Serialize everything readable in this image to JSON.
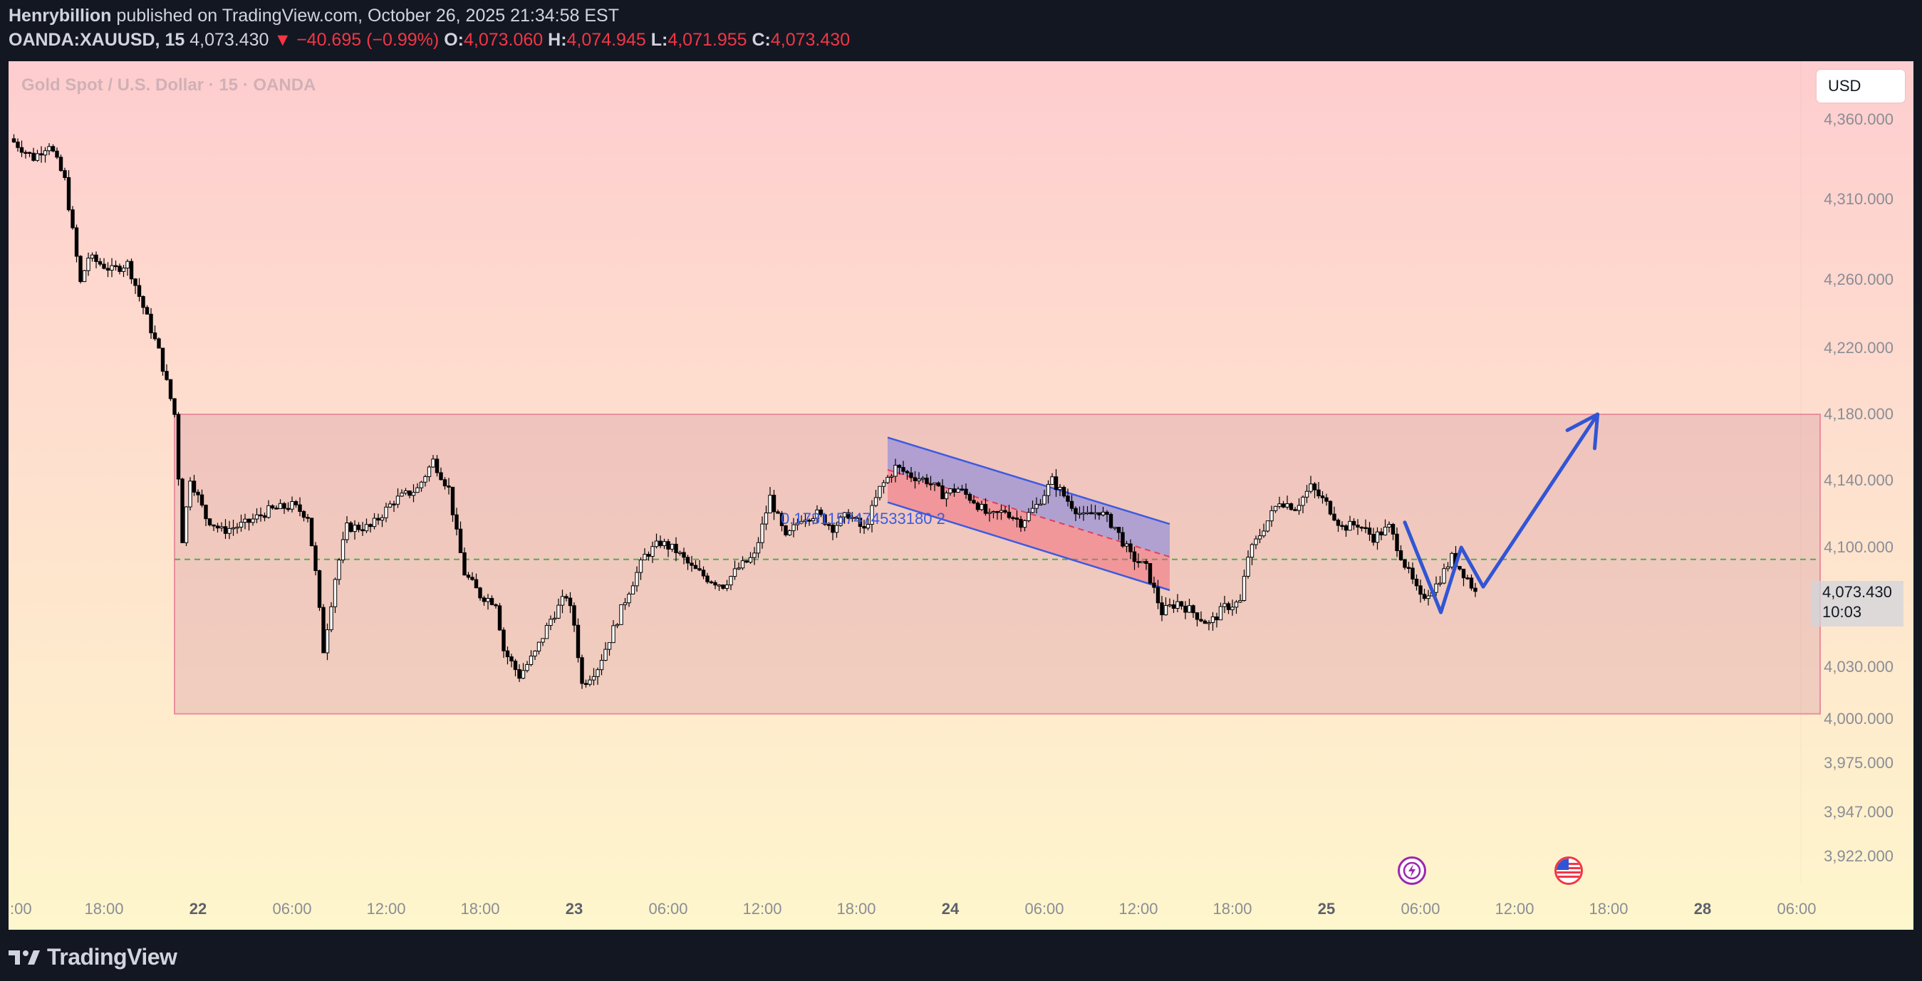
{
  "header": {
    "author": "Henrybillion",
    "published_text": "published on TradingView.com, October 26, 2025 21:34:58 EST",
    "symbol": "OANDA:XAUUSD, 15",
    "last_price": "4,073.430",
    "change": "▼ −40.695 (−0.99%)",
    "open_label": "O:",
    "open": "4,073.060",
    "high_label": "H:",
    "high": "4,074.945",
    "low_label": "L:",
    "low": "4,071.955",
    "close_label": "C:",
    "close": "4,073.430"
  },
  "chart": {
    "symbol_title": "Gold Spot / U.S. Dollar · 15 · OANDA",
    "currency": "USD",
    "price_tag_value": "4,073.430",
    "price_tag_timer": "10:03",
    "channel_label": "0.1731157474533180 2"
  },
  "footer": {
    "brand": "TradingView"
  },
  "colors": {
    "background_top": "#fecdcf",
    "background_bottom": "#fef6cc",
    "up_candle": "#ffffff",
    "down_candle": "#000000",
    "range_box": "#e2a8b3",
    "channel_blue": "#3d5be0",
    "arrow": "#3155d4",
    "midline": "#4caf50",
    "axis_text": "#8a8d96"
  },
  "icons": [
    "flash-icon",
    "us-flag-icon",
    "tradingview-logo-icon"
  ],
  "chart_data": {
    "type": "candlestick",
    "timeframe": "15",
    "y_ticks": [
      4360,
      4310,
      4260,
      4220,
      4180,
      4140,
      4100,
      4030,
      4000,
      3975,
      3947,
      3922
    ],
    "y_tick_labels": [
      "4,360.000",
      "4,310.000",
      "4,260.000",
      "4,220.000",
      "4,180.000",
      "4,140.000",
      "4,100.000",
      "4,030.000",
      "4,000.000",
      "3,975.000",
      "3,947.000",
      "3,922.000"
    ],
    "x_ticks": [
      {
        "label": ":00",
        "t": 12
      },
      {
        "label": "18:00",
        "t": 18
      },
      {
        "label": "22",
        "t": 24
      },
      {
        "label": "06:00",
        "t": 30
      },
      {
        "label": "12:00",
        "t": 36
      },
      {
        "label": "18:00",
        "t": 42
      },
      {
        "label": "23",
        "t": 48
      },
      {
        "label": "06:00",
        "t": 54
      },
      {
        "label": "12:00",
        "t": 60
      },
      {
        "label": "18:00",
        "t": 66
      },
      {
        "label": "24",
        "t": 72
      },
      {
        "label": "06:00",
        "t": 78
      },
      {
        "label": "12:00",
        "t": 84
      },
      {
        "label": "18:00",
        "t": 90
      },
      {
        "label": "25",
        "t": 96
      },
      {
        "label": "06:00",
        "t": 102
      },
      {
        "label": "12:00",
        "t": 108
      },
      {
        "label": "18:00",
        "t": 114
      },
      {
        "label": "28",
        "t": 120
      },
      {
        "label": "06:00",
        "t": 126
      }
    ],
    "price_path": [
      {
        "t": 12,
        "p": 4348
      },
      {
        "t": 13.5,
        "p": 4336
      },
      {
        "t": 14.5,
        "p": 4345
      },
      {
        "t": 15.5,
        "p": 4322
      },
      {
        "t": 16,
        "p": 4290
      },
      {
        "t": 16.5,
        "p": 4258
      },
      {
        "t": 17,
        "p": 4274
      },
      {
        "t": 18.5,
        "p": 4266
      },
      {
        "t": 19.5,
        "p": 4270
      },
      {
        "t": 20.5,
        "p": 4244
      },
      {
        "t": 21.5,
        "p": 4218
      },
      {
        "t": 22.5,
        "p": 4180
      },
      {
        "t": 23,
        "p": 4105
      },
      {
        "t": 23.5,
        "p": 4142
      },
      {
        "t": 24.5,
        "p": 4118
      },
      {
        "t": 25.5,
        "p": 4110
      },
      {
        "t": 27,
        "p": 4114
      },
      {
        "t": 28.5,
        "p": 4122
      },
      {
        "t": 30,
        "p": 4125
      },
      {
        "t": 31,
        "p": 4119
      },
      {
        "t": 31.5,
        "p": 4085
      },
      {
        "t": 32,
        "p": 4040
      },
      {
        "t": 32.8,
        "p": 4085
      },
      {
        "t": 33.5,
        "p": 4112
      },
      {
        "t": 35,
        "p": 4112
      },
      {
        "t": 36.5,
        "p": 4128
      },
      {
        "t": 38,
        "p": 4135
      },
      {
        "t": 39,
        "p": 4152
      },
      {
        "t": 40,
        "p": 4135
      },
      {
        "t": 40.5,
        "p": 4108
      },
      {
        "t": 41,
        "p": 4085
      },
      {
        "t": 42,
        "p": 4072
      },
      {
        "t": 43,
        "p": 4068
      },
      {
        "t": 43.5,
        "p": 4040
      },
      {
        "t": 44.5,
        "p": 4025
      },
      {
        "t": 45.5,
        "p": 4038
      },
      {
        "t": 46.5,
        "p": 4058
      },
      {
        "t": 47.5,
        "p": 4072
      },
      {
        "t": 48,
        "p": 4055
      },
      {
        "t": 48.5,
        "p": 4020
      },
      {
        "t": 49.5,
        "p": 4030
      },
      {
        "t": 50.5,
        "p": 4052
      },
      {
        "t": 51.5,
        "p": 4075
      },
      {
        "t": 52.5,
        "p": 4095
      },
      {
        "t": 53.5,
        "p": 4103
      },
      {
        "t": 54.5,
        "p": 4098
      },
      {
        "t": 55.5,
        "p": 4088
      },
      {
        "t": 56.5,
        "p": 4082
      },
      {
        "t": 57.5,
        "p": 4078
      },
      {
        "t": 58.5,
        "p": 4088
      },
      {
        "t": 59.5,
        "p": 4095
      },
      {
        "t": 60.5,
        "p": 4130
      },
      {
        "t": 61.5,
        "p": 4105
      },
      {
        "t": 62.5,
        "p": 4118
      },
      {
        "t": 63.5,
        "p": 4120
      },
      {
        "t": 64.5,
        "p": 4112
      },
      {
        "t": 65.5,
        "p": 4120
      },
      {
        "t": 66.5,
        "p": 4110
      },
      {
        "t": 67.5,
        "p": 4135
      },
      {
        "t": 68.5,
        "p": 4148
      },
      {
        "t": 69.5,
        "p": 4143
      },
      {
        "t": 70.5,
        "p": 4140
      },
      {
        "t": 71.5,
        "p": 4132
      },
      {
        "t": 72.5,
        "p": 4135
      },
      {
        "t": 73.5,
        "p": 4128
      },
      {
        "t": 74.5,
        "p": 4118
      },
      {
        "t": 75.5,
        "p": 4122
      },
      {
        "t": 76.5,
        "p": 4115
      },
      {
        "t": 77.5,
        "p": 4125
      },
      {
        "t": 78.5,
        "p": 4140
      },
      {
        "t": 79.5,
        "p": 4128
      },
      {
        "t": 80.5,
        "p": 4118
      },
      {
        "t": 81.5,
        "p": 4122
      },
      {
        "t": 82.5,
        "p": 4112
      },
      {
        "t": 83.5,
        "p": 4095
      },
      {
        "t": 84.5,
        "p": 4088
      },
      {
        "t": 85.5,
        "p": 4062
      },
      {
        "t": 86.5,
        "p": 4068
      },
      {
        "t": 87.5,
        "p": 4062
      },
      {
        "t": 88.5,
        "p": 4055
      },
      {
        "t": 89.5,
        "p": 4065
      },
      {
        "t": 90.5,
        "p": 4068
      },
      {
        "t": 91,
        "p": 4095
      },
      {
        "t": 92,
        "p": 4112
      },
      {
        "t": 93,
        "p": 4128
      },
      {
        "t": 94,
        "p": 4124
      },
      {
        "t": 95,
        "p": 4136
      },
      {
        "t": 96,
        "p": 4126
      },
      {
        "t": 97,
        "p": 4112
      },
      {
        "t": 98,
        "p": 4114
      },
      {
        "t": 99,
        "p": 4106
      },
      {
        "t": 100,
        "p": 4112
      },
      {
        "t": 101,
        "p": 4090
      },
      {
        "t": 102,
        "p": 4070
      },
      {
        "t": 103,
        "p": 4078
      },
      {
        "t": 104,
        "p": 4094
      },
      {
        "t": 105,
        "p": 4082
      },
      {
        "t": 105.5,
        "p": 4073.43
      }
    ],
    "range_box": {
      "t_start": 22.5,
      "t_end": 127.5,
      "price_high": 4180,
      "price_low": 4003
    },
    "midline_price": 4093,
    "descending_channel": {
      "t_start": 68,
      "t_end": 86,
      "upper": [
        4166,
        4114
      ],
      "lower": [
        4127,
        4075
      ]
    },
    "projection_path": [
      {
        "t": 101,
        "p": 4115
      },
      {
        "t": 103.3,
        "p": 4062
      },
      {
        "t": 104.6,
        "p": 4100
      },
      {
        "t": 106,
        "p": 4077
      },
      {
        "t": 113.3,
        "p": 4180
      }
    ]
  }
}
